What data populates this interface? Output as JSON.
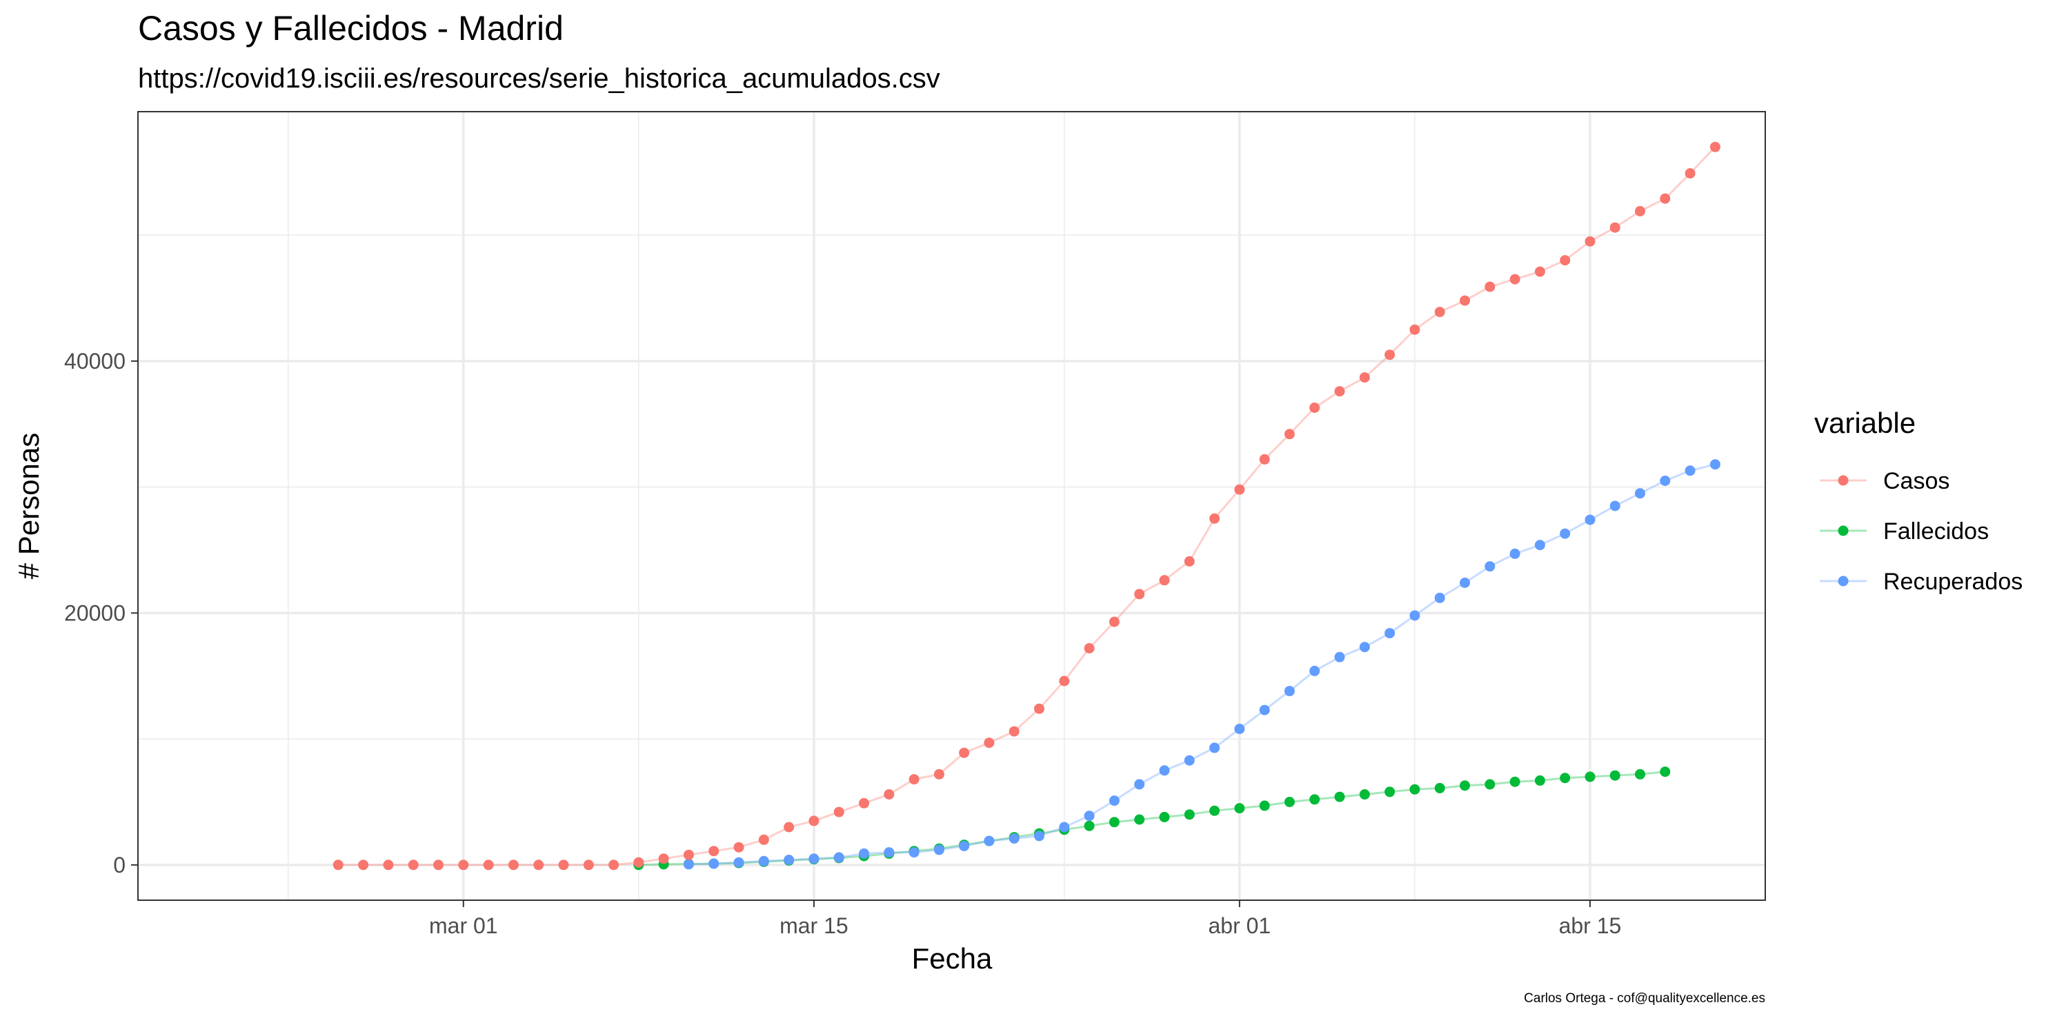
{
  "chart_data": {
    "type": "line",
    "title": "Casos y Fallecidos - Madrid",
    "subtitle": "https://covid19.isciii.es/resources/serie_historica_acumulados.csv",
    "xlabel": "Fecha",
    "ylabel": "# Personas",
    "caption": "Carlos Ortega - cof@qualityexcellence.es",
    "x_ticks": [
      {
        "label": "mar 01",
        "day": 0
      },
      {
        "label": "mar 15",
        "day": 14
      },
      {
        "label": "abr 01",
        "day": 31
      },
      {
        "label": "abr 15",
        "day": 45
      }
    ],
    "x_minor_days": [
      -7,
      7,
      24,
      38
    ],
    "xlim_days": [
      -13,
      52
    ],
    "y_ticks": [
      0,
      20000,
      40000
    ],
    "y_minor": [
      10000,
      30000,
      50000
    ],
    "ylim": [
      -2800,
      59800
    ],
    "grid": true,
    "legend_title": "variable",
    "legend_position": "right",
    "series": [
      {
        "name": "Casos",
        "color": "#F8766D",
        "start_day": -5,
        "values": [
          0,
          0,
          0,
          0,
          0,
          0,
          0,
          0,
          0,
          0,
          0,
          0,
          200,
          500,
          800,
          1100,
          1400,
          2000,
          3000,
          3500,
          4200,
          4900,
          5600,
          6800,
          7200,
          8900,
          9700,
          10600,
          12400,
          14600,
          17200,
          19300,
          21500,
          22600,
          24100,
          27500,
          29800,
          32200,
          34200,
          36300,
          37600,
          38700,
          40500,
          42500,
          43900,
          44800,
          45900,
          46500,
          47100,
          48000,
          49500,
          50600,
          51900,
          52900,
          54900,
          57000
        ]
      },
      {
        "name": "Fallecidos",
        "color": "#00BA38",
        "start_day": 7,
        "values": [
          0,
          50,
          80,
          100,
          150,
          250,
          350,
          450,
          550,
          700,
          900,
          1100,
          1300,
          1600,
          1900,
          2200,
          2500,
          2800,
          3100,
          3400,
          3600,
          3800,
          4000,
          4300,
          4500,
          4700,
          5000,
          5200,
          5400,
          5600,
          5800,
          6000,
          6100,
          6300,
          6400,
          6600,
          6700,
          6900,
          7000,
          7100,
          7200,
          7400
        ]
      },
      {
        "name": "Recuperados",
        "color": "#619CFF",
        "start_day": 9,
        "values": [
          50,
          100,
          200,
          300,
          400,
          500,
          600,
          900,
          1000,
          1000,
          1200,
          1500,
          1900,
          2100,
          2300,
          3000,
          3900,
          5100,
          6400,
          7500,
          8300,
          9300,
          10800,
          12300,
          13800,
          15400,
          16500,
          17300,
          18400,
          19800,
          21200,
          22400,
          23700,
          24700,
          25400,
          26300,
          27400,
          28500,
          29500,
          30500,
          31300,
          31800
        ]
      }
    ]
  }
}
